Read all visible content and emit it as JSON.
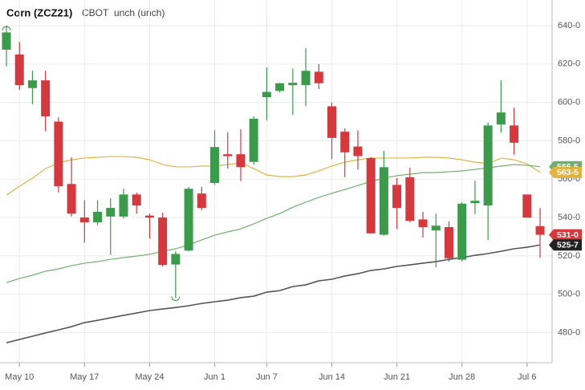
{
  "chart_data": {
    "type": "candlestick",
    "title": "Corn (ZCZ21)",
    "exchange": "CBOT",
    "change": "unch (unch)",
    "categories": [
      null,
      "May 10",
      null,
      null,
      null,
      null,
      "May 17",
      null,
      null,
      null,
      null,
      "May 24",
      null,
      null,
      null,
      null,
      "Jun 1",
      null,
      null,
      null,
      "Jun 7",
      null,
      null,
      null,
      null,
      "Jun 14",
      null,
      null,
      null,
      null,
      "Jun 21",
      null,
      null,
      null,
      null,
      "Jun 28",
      null,
      null,
      null,
      null,
      "Jul 6",
      null
    ],
    "open": [
      627.5,
      625,
      607.5,
      611.5,
      590,
      557.5,
      540,
      537.5,
      540.5,
      540.5,
      552,
      541,
      540,
      515.5,
      522.75,
      552.5,
      558,
      573,
      573,
      569,
      602.75,
      606,
      609,
      609,
      616,
      598,
      584.75,
      577,
      571,
      531,
      557,
      561,
      539,
      533.25,
      535,
      518,
      547.5,
      546.25,
      588.5,
      588,
      552,
      535.5
    ],
    "high": [
      640,
      631.5,
      616.5,
      616.5,
      592.25,
      571.5,
      549,
      549,
      550,
      555,
      553,
      542,
      542.5,
      522.5,
      556,
      556,
      585.5,
      584.5,
      586,
      592.75,
      618.25,
      610.25,
      617.75,
      628.25,
      620,
      600,
      586.5,
      585.5,
      571.5,
      574.75,
      560.5,
      566,
      543,
      542,
      538,
      548,
      559.25,
      589.5,
      611.5,
      597.25,
      552,
      545
    ],
    "low": [
      618.75,
      606.5,
      599,
      585,
      553,
      540.5,
      527,
      536,
      520.5,
      539.5,
      542,
      529,
      514.5,
      498,
      522.5,
      543.75,
      557,
      565.5,
      559,
      567.5,
      590.75,
      605.25,
      593.5,
      598,
      607,
      570.5,
      561,
      565,
      531.75,
      530.5,
      534,
      537.5,
      529.5,
      514,
      517,
      517,
      541.75,
      528.25,
      584.25,
      572.75,
      540,
      519
    ],
    "close": [
      636.5,
      609,
      611.5,
      592.75,
      556.25,
      542,
      537.5,
      543,
      545,
      552,
      546.25,
      540,
      515.25,
      521,
      555,
      545,
      576.75,
      572,
      566.25,
      591.5,
      605.5,
      610,
      610.25,
      616.5,
      610,
      581.5,
      574,
      572,
      531.75,
      566.25,
      545,
      538.25,
      535,
      535.75,
      518.75,
      547.25,
      548.75,
      588,
      594.75,
      579,
      540,
      531
    ],
    "up_color": "#3a9c4a",
    "down_color": "#d6393d",
    "lines": [
      {
        "color": "#e3b341",
        "values": [
          551.7,
          556.3,
          560.5,
          565.5,
          568.5,
          570.1,
          571,
          571.4,
          571.8,
          571.8,
          571.4,
          570.1,
          567.6,
          566.4,
          566.4,
          566.8,
          566.8,
          567.6,
          568.5,
          565.5,
          562.2,
          561.3,
          561.3,
          562.2,
          564.3,
          566.8,
          568.9,
          570.1,
          571,
          571,
          571,
          571,
          571.4,
          571.4,
          571,
          570.1,
          568.9,
          568,
          571,
          570.1,
          568,
          563.5
        ]
      },
      {
        "color": "#6fb06f",
        "values": [
          506.1,
          508.2,
          509.9,
          512,
          513.2,
          514.9,
          516.2,
          517,
          518.2,
          519.1,
          519.9,
          520.8,
          522.4,
          523.7,
          525.8,
          528.3,
          530.8,
          532.5,
          534.1,
          536.7,
          539.6,
          542.1,
          545.4,
          548,
          550.5,
          552.6,
          554.6,
          556.7,
          558.8,
          560.5,
          561.8,
          562.6,
          563.4,
          563.4,
          563.9,
          564.3,
          565.1,
          565.9,
          566.8,
          567.6,
          567.2,
          566.5
        ]
      },
      {
        "color": "#555555",
        "values": [
          474.7,
          476.4,
          478.1,
          479.8,
          481.4,
          483.1,
          485.2,
          486.4,
          487.7,
          489,
          490.2,
          491.5,
          492.3,
          493.1,
          494,
          495.2,
          496.1,
          496.9,
          498.2,
          499,
          501.1,
          501.9,
          504,
          504.9,
          507,
          507.8,
          509.5,
          510.7,
          512.4,
          513.2,
          514.5,
          515.3,
          516.2,
          517,
          518.2,
          519.1,
          520.3,
          521.2,
          522.4,
          523.7,
          524.5,
          525.7
        ]
      }
    ],
    "price_tags": [
      {
        "value": 566.5,
        "label": "566-5",
        "color": "#6fb06f"
      },
      {
        "value": 563.5,
        "label": "563-5",
        "color": "#e3b341"
      },
      {
        "value": 531,
        "label": "531-0",
        "color": "#d6393d"
      },
      {
        "value": 525.7,
        "label": "525-7",
        "color": "#222222"
      }
    ],
    "ylim": [
      464.3,
      653.4
    ],
    "yticks": [
      {
        "value": 480,
        "label": "480-0"
      },
      {
        "value": 500,
        "label": "500-0"
      },
      {
        "value": 520,
        "label": "520-0"
      },
      {
        "value": 540,
        "label": "540-0"
      },
      {
        "value": 560,
        "label": "560-0"
      },
      {
        "value": 580,
        "label": "580-0"
      },
      {
        "value": 600,
        "label": "600-0"
      },
      {
        "value": 620,
        "label": "620-0"
      },
      {
        "value": 640,
        "label": "640-0"
      }
    ],
    "grid": true
  }
}
